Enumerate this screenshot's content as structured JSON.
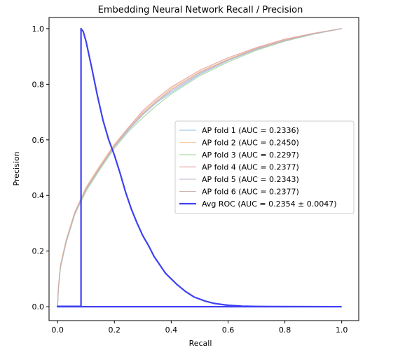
{
  "chart_data": {
    "type": "line",
    "title": "Embedding Neural Network Recall / Precision",
    "xlabel": "Recall",
    "ylabel": "Precision",
    "xlim": [
      -0.03,
      1.06
    ],
    "ylim": [
      -0.05,
      1.04
    ],
    "xticks": [
      "0.0",
      "0.2",
      "0.4",
      "0.6",
      "0.8",
      "1.0"
    ],
    "yticks": [
      "0.0",
      "0.2",
      "0.4",
      "0.6",
      "0.8",
      "1.0"
    ],
    "grid": false,
    "legend_position": "center-right",
    "series": [
      {
        "name": "AP fold 1 (AUC = 0.2336)",
        "color": "#9ec7e3",
        "width": 1.2,
        "opacity": 0.9,
        "points": [
          [
            0.0,
            0.0
          ],
          [
            0.0025,
            0.06
          ],
          [
            0.01,
            0.14
          ],
          [
            0.03,
            0.23
          ],
          [
            0.06,
            0.33
          ],
          [
            0.1,
            0.42
          ],
          [
            0.15,
            0.5
          ],
          [
            0.2,
            0.575
          ],
          [
            0.25,
            0.635
          ],
          [
            0.3,
            0.69
          ],
          [
            0.35,
            0.735
          ],
          [
            0.4,
            0.77
          ],
          [
            0.5,
            0.835
          ],
          [
            0.6,
            0.885
          ],
          [
            0.7,
            0.925
          ],
          [
            0.8,
            0.955
          ],
          [
            0.9,
            0.98
          ],
          [
            1.0,
            1.0
          ]
        ]
      },
      {
        "name": "AP fold 2 (AUC = 0.2450)",
        "color": "#fbc996",
        "width": 1.2,
        "opacity": 0.9,
        "points": [
          [
            0.0,
            0.0
          ],
          [
            0.0025,
            0.065
          ],
          [
            0.01,
            0.15
          ],
          [
            0.03,
            0.24
          ],
          [
            0.06,
            0.34
          ],
          [
            0.1,
            0.43
          ],
          [
            0.15,
            0.51
          ],
          [
            0.2,
            0.585
          ],
          [
            0.25,
            0.645
          ],
          [
            0.3,
            0.7
          ],
          [
            0.35,
            0.745
          ],
          [
            0.4,
            0.785
          ],
          [
            0.5,
            0.845
          ],
          [
            0.6,
            0.89
          ],
          [
            0.7,
            0.93
          ],
          [
            0.8,
            0.96
          ],
          [
            0.9,
            0.982
          ],
          [
            1.0,
            1.0
          ]
        ]
      },
      {
        "name": "AP fold 3 (AUC = 0.2297)",
        "color": "#a3d9a3",
        "width": 1.2,
        "opacity": 0.9,
        "points": [
          [
            0.0,
            0.0
          ],
          [
            0.0025,
            0.055
          ],
          [
            0.01,
            0.14
          ],
          [
            0.03,
            0.23
          ],
          [
            0.06,
            0.33
          ],
          [
            0.1,
            0.415
          ],
          [
            0.15,
            0.495
          ],
          [
            0.2,
            0.57
          ],
          [
            0.25,
            0.63
          ],
          [
            0.3,
            0.68
          ],
          [
            0.35,
            0.725
          ],
          [
            0.4,
            0.765
          ],
          [
            0.5,
            0.83
          ],
          [
            0.6,
            0.88
          ],
          [
            0.7,
            0.922
          ],
          [
            0.8,
            0.955
          ],
          [
            0.9,
            0.98
          ],
          [
            1.0,
            1.0
          ]
        ]
      },
      {
        "name": "AP fold 4 (AUC = 0.2377)",
        "color": "#e8a3a3",
        "width": 1.2,
        "opacity": 0.9,
        "points": [
          [
            0.0,
            0.0
          ],
          [
            0.0025,
            0.06
          ],
          [
            0.01,
            0.145
          ],
          [
            0.03,
            0.235
          ],
          [
            0.06,
            0.335
          ],
          [
            0.1,
            0.425
          ],
          [
            0.15,
            0.505
          ],
          [
            0.2,
            0.58
          ],
          [
            0.25,
            0.645
          ],
          [
            0.3,
            0.705
          ],
          [
            0.35,
            0.75
          ],
          [
            0.4,
            0.79
          ],
          [
            0.5,
            0.85
          ],
          [
            0.6,
            0.895
          ],
          [
            0.7,
            0.932
          ],
          [
            0.8,
            0.962
          ],
          [
            0.9,
            0.983
          ],
          [
            1.0,
            1.0
          ]
        ]
      },
      {
        "name": "AP fold 5 (AUC = 0.2343)",
        "color": "#c9b8dc",
        "width": 1.2,
        "opacity": 0.9,
        "points": [
          [
            0.0,
            0.0
          ],
          [
            0.0025,
            0.06
          ],
          [
            0.01,
            0.142
          ],
          [
            0.03,
            0.232
          ],
          [
            0.06,
            0.332
          ],
          [
            0.1,
            0.42
          ],
          [
            0.15,
            0.5
          ],
          [
            0.2,
            0.575
          ],
          [
            0.25,
            0.638
          ],
          [
            0.3,
            0.692
          ],
          [
            0.35,
            0.737
          ],
          [
            0.4,
            0.775
          ],
          [
            0.5,
            0.838
          ],
          [
            0.6,
            0.886
          ],
          [
            0.7,
            0.926
          ],
          [
            0.8,
            0.957
          ],
          [
            0.9,
            0.981
          ],
          [
            1.0,
            1.0
          ]
        ]
      },
      {
        "name": "AP fold 6 (AUC = 0.2377)",
        "color": "#c9aea6",
        "width": 1.2,
        "opacity": 0.9,
        "points": [
          [
            0.0,
            0.0
          ],
          [
            0.0025,
            0.062
          ],
          [
            0.01,
            0.146
          ],
          [
            0.03,
            0.236
          ],
          [
            0.06,
            0.336
          ],
          [
            0.1,
            0.424
          ],
          [
            0.15,
            0.503
          ],
          [
            0.2,
            0.578
          ],
          [
            0.25,
            0.64
          ],
          [
            0.3,
            0.695
          ],
          [
            0.35,
            0.74
          ],
          [
            0.4,
            0.78
          ],
          [
            0.5,
            0.842
          ],
          [
            0.6,
            0.888
          ],
          [
            0.7,
            0.928
          ],
          [
            0.8,
            0.958
          ],
          [
            0.9,
            0.982
          ],
          [
            1.0,
            1.0
          ]
        ]
      },
      {
        "name": "Avg ROC (AUC = 0.2354 ± 0.0047)",
        "color": "#2a2ef0",
        "width": 2.2,
        "opacity": 0.9,
        "points": [
          [
            1.0,
            0.0
          ],
          [
            0.0,
            0.0
          ],
          [
            0.0,
            0.0015
          ],
          [
            0.0825,
            0.0015
          ],
          [
            0.0825,
            1.0
          ],
          [
            0.09,
            0.99
          ],
          [
            0.1,
            0.955
          ],
          [
            0.12,
            0.86
          ],
          [
            0.14,
            0.76
          ],
          [
            0.16,
            0.67
          ],
          [
            0.18,
            0.6
          ],
          [
            0.2,
            0.545
          ],
          [
            0.22,
            0.48
          ],
          [
            0.24,
            0.41
          ],
          [
            0.26,
            0.35
          ],
          [
            0.28,
            0.3
          ],
          [
            0.3,
            0.255
          ],
          [
            0.32,
            0.22
          ],
          [
            0.34,
            0.18
          ],
          [
            0.36,
            0.15
          ],
          [
            0.38,
            0.12
          ],
          [
            0.4,
            0.1
          ],
          [
            0.42,
            0.08
          ],
          [
            0.45,
            0.055
          ],
          [
            0.48,
            0.035
          ],
          [
            0.52,
            0.02
          ],
          [
            0.55,
            0.012
          ],
          [
            0.6,
            0.005
          ],
          [
            0.65,
            0.002
          ],
          [
            0.7,
            0.001
          ],
          [
            1.0,
            0.0
          ]
        ]
      }
    ]
  }
}
